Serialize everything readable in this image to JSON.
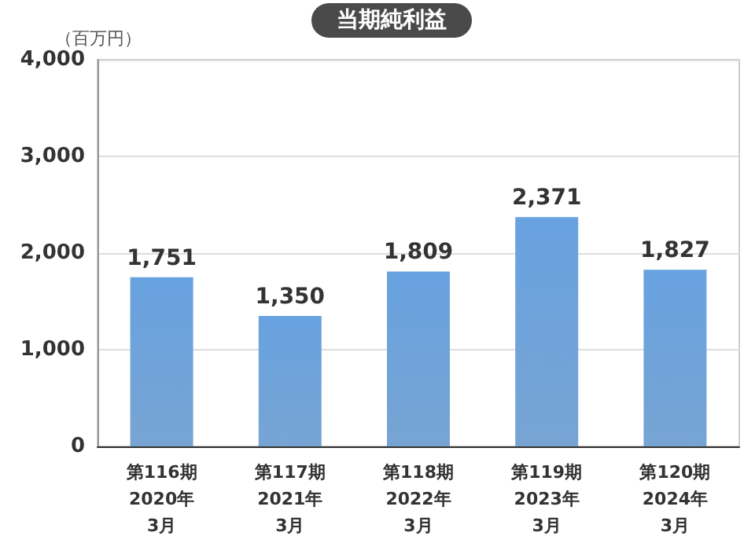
{
  "chart_data": {
    "type": "bar",
    "title": "当期純利益",
    "ylabel": "（百万円）",
    "categories": [
      "第116期\n2020年\n3月",
      "第117期\n2021年\n3月",
      "第118期\n2022年\n3月",
      "第119期\n2023年\n3月",
      "第120期\n2024年\n3月"
    ],
    "series": [
      {
        "color": "#5f94cc",
        "values": [
          1751,
          1350,
          1809,
          2371,
          1827
        ],
        "value_labels": [
          "1,751",
          "1,350",
          "1,809",
          "2,371",
          "1,827"
        ]
      }
    ],
    "ylim": [
      0,
      4000
    ],
    "yticks": [
      0,
      {
        "value": 1000,
        "label": "1,000"
      },
      {
        "value": 2000,
        "label": "2,000"
      },
      {
        "value": 3000,
        "label": "3,000"
      },
      {
        "value": 4000,
        "label": "4,000"
      }
    ],
    "grid": "y"
  }
}
